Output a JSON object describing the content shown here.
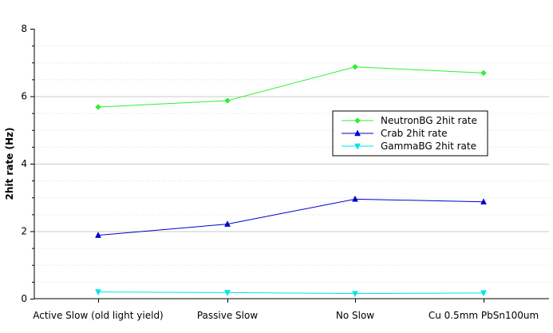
{
  "chart_data": {
    "type": "line",
    "title": "",
    "xlabel": "",
    "ylabel": "2hit rate (Hz)",
    "categories": [
      "Active Slow (old light yield)",
      "Passive Slow",
      "No Slow",
      "Cu 0.5mm PbSn100um"
    ],
    "y_ticks": [
      "0",
      "2",
      "4",
      "6",
      "8"
    ],
    "ylim": [
      0,
      8
    ],
    "grid": "horizontal major and minor",
    "legend_position": "right-middle",
    "series": [
      {
        "name": "NeutronBG 2hit rate",
        "color": "#33ee33",
        "marker": "diamond",
        "x": [
          1,
          2,
          3,
          4
        ],
        "values": [
          5.68,
          5.87,
          6.87,
          6.69
        ]
      },
      {
        "name": "Crab 2hit rate",
        "color": "#0000cc",
        "marker": "triangle-up",
        "x": [
          1,
          2,
          3,
          4
        ],
        "values": [
          1.88,
          2.21,
          2.95,
          2.87
        ]
      },
      {
        "name": "GammaBG 2hit rate",
        "color": "#00e5e5",
        "marker": "triangle-down",
        "x": [
          1,
          2,
          3,
          4
        ],
        "values": [
          0.2,
          0.18,
          0.15,
          0.17
        ]
      }
    ]
  }
}
